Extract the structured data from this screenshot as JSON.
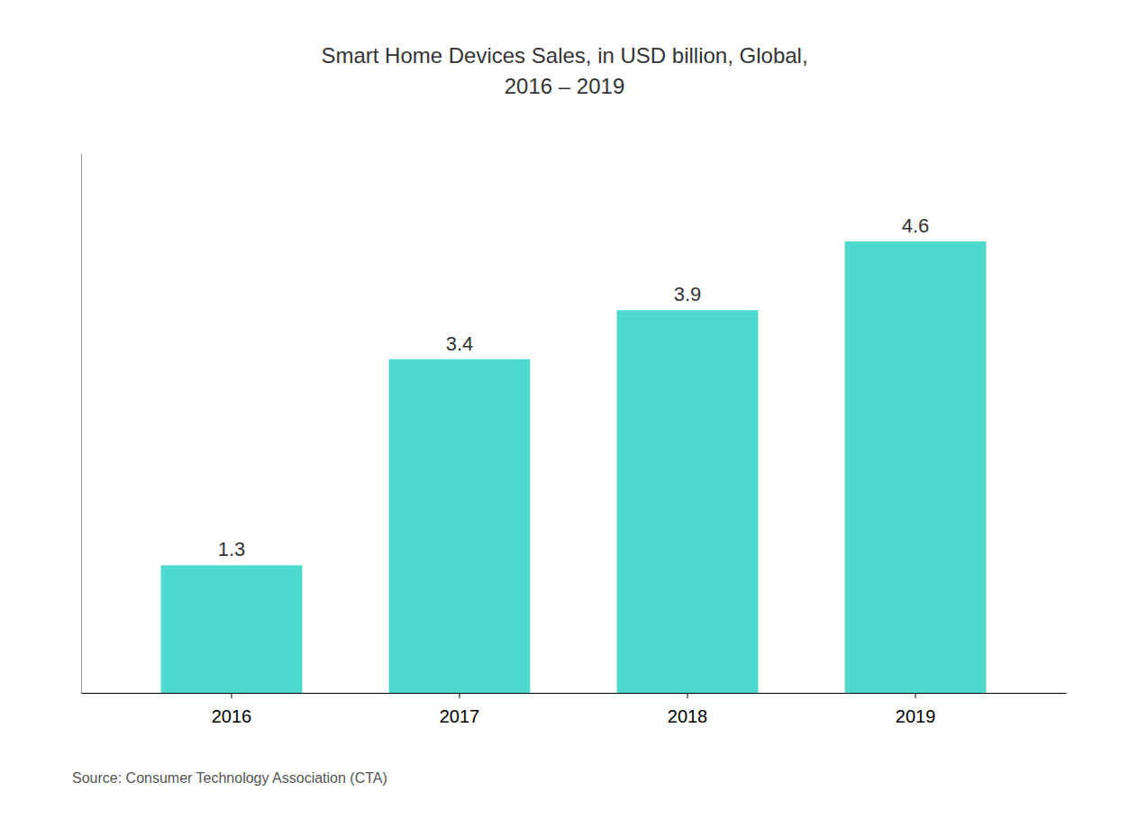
{
  "chart_data": {
    "type": "bar",
    "title": "Smart Home Devices Sales, in USD billion, Global,",
    "subtitle": "2016 – 2019",
    "categories": [
      "2016",
      "2017",
      "2018",
      "2019"
    ],
    "values": [
      1.3,
      3.4,
      3.9,
      4.6
    ],
    "color": "#4DD9D0",
    "ylim": [
      0,
      5.5
    ],
    "data_labels": true,
    "tick_labels": "x",
    "annotations": [
      "Source: Consumer Technology Association (CTA)"
    ]
  }
}
